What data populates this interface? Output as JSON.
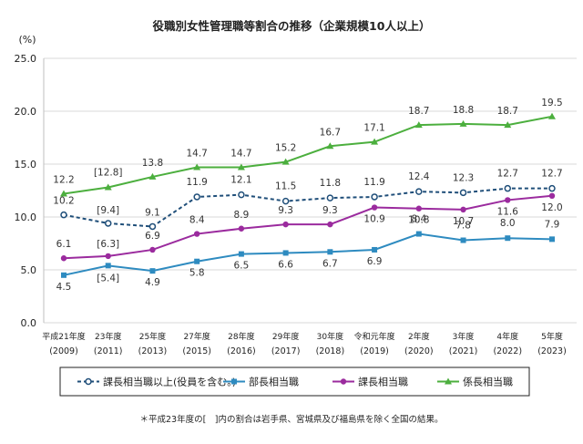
{
  "chart_data": {
    "type": "line",
    "title": "役職別女性管理職等割合の推移（企業規模10人以上）",
    "yunit": "(%)",
    "ylim": [
      0,
      25
    ],
    "yticks": [
      "0.0",
      "5.0",
      "10.0",
      "15.0",
      "20.0",
      "25.0"
    ],
    "grid": true,
    "legend_position": "bottom",
    "categories": [
      {
        "line1": "平成21年度",
        "line2": "(2009)"
      },
      {
        "line1": "23年度",
        "line2": "(2011)"
      },
      {
        "line1": "25年度",
        "line2": "(2013)"
      },
      {
        "line1": "27年度",
        "line2": "(2015)"
      },
      {
        "line1": "28年度",
        "line2": "(2016)"
      },
      {
        "line1": "29年度",
        "line2": "(2017)"
      },
      {
        "line1": "30年度",
        "line2": "(2018)"
      },
      {
        "line1": "令和元年度",
        "line2": "(2019)"
      },
      {
        "line1": "2年度",
        "line2": "(2020)"
      },
      {
        "line1": "3年度",
        "line2": "(2021)"
      },
      {
        "line1": "4年度",
        "line2": "(2022)"
      },
      {
        "line1": "5年度",
        "line2": "(2023)"
      }
    ],
    "series": [
      {
        "name": "課長相当職以上(役員を含む。)",
        "color": "#1f4e79",
        "dashed": true,
        "marker": "open-circle",
        "values": [
          10.2,
          9.4,
          9.1,
          11.9,
          12.1,
          11.5,
          11.8,
          11.9,
          12.4,
          12.3,
          12.7,
          12.7
        ],
        "labels": [
          "10.2",
          "[9.4]",
          "9.1",
          "11.9",
          "12.1",
          "11.5",
          "11.8",
          "11.9",
          "12.4",
          "12.3",
          "12.7",
          "12.7"
        ]
      },
      {
        "name": "部長相当職",
        "color": "#2e8bc0",
        "dashed": false,
        "marker": "square",
        "values": [
          4.5,
          5.4,
          4.9,
          5.8,
          6.5,
          6.6,
          6.7,
          6.9,
          8.4,
          7.8,
          8.0,
          7.9
        ],
        "labels": [
          "4.5",
          "[5.4]",
          "4.9",
          "5.8",
          "6.5",
          "6.6",
          "6.7",
          "6.9",
          "8.4",
          "7.8",
          "8.0",
          "7.9"
        ]
      },
      {
        "name": "課長相当職",
        "color": "#9b2b9e",
        "dashed": false,
        "marker": "circle",
        "values": [
          6.1,
          6.3,
          6.9,
          8.4,
          8.9,
          9.3,
          9.3,
          10.9,
          10.8,
          10.7,
          11.6,
          12.0
        ],
        "labels": [
          "6.1",
          "[6.3]",
          "6.9",
          "8.4",
          "8.9",
          "9.3",
          "9.3",
          "10.9",
          "10.8",
          "10.7",
          "11.6",
          "12.0"
        ]
      },
      {
        "name": "係長相当職",
        "color": "#4caf3e",
        "dashed": false,
        "marker": "triangle",
        "values": [
          12.2,
          12.8,
          13.8,
          14.7,
          14.7,
          15.2,
          16.7,
          17.1,
          18.7,
          18.8,
          18.7,
          19.5
        ],
        "labels": [
          "12.2",
          "[12.8]",
          "13.8",
          "14.7",
          "14.7",
          "15.2",
          "16.7",
          "17.1",
          "18.7",
          "18.8",
          "18.7",
          "19.5"
        ]
      }
    ],
    "footnote": "＊平成23年度の[　]内の割合は岩手県、宮城県及び福島県を除く全国の結果。"
  }
}
